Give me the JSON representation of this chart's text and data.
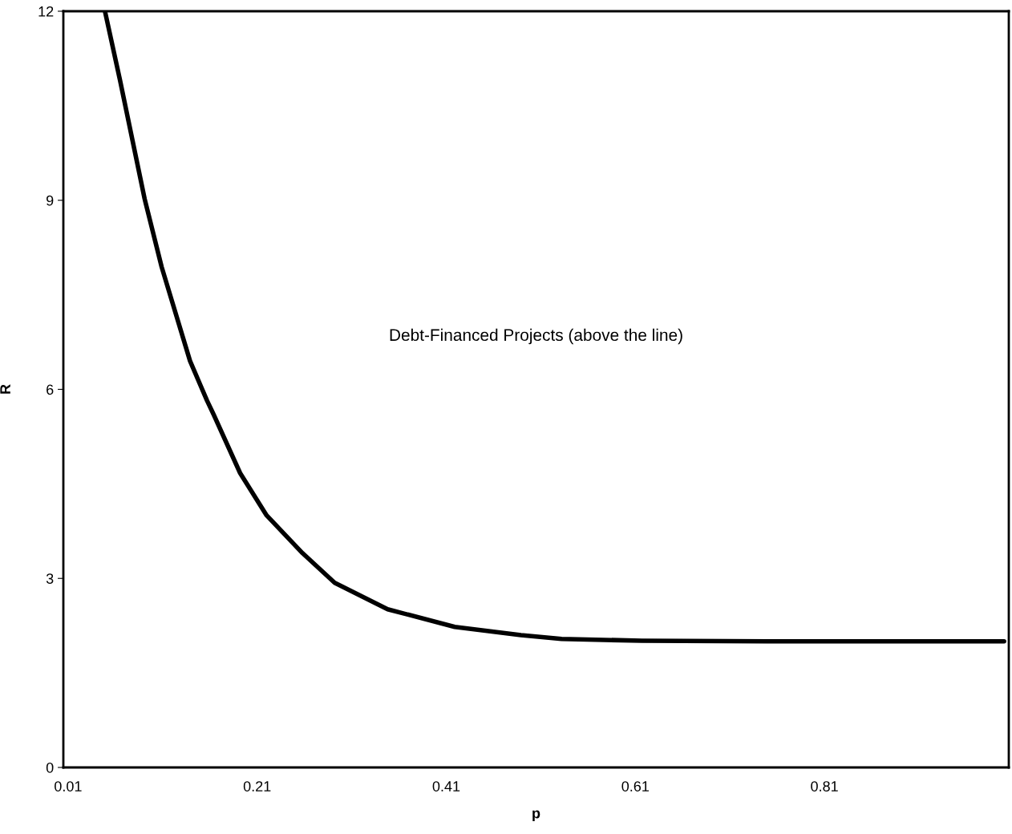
{
  "chart_data": {
    "type": "line",
    "xlabel": "p",
    "ylabel": "R",
    "annotations": [
      "Debt-Financed Projects (above the line)"
    ],
    "series": [
      {
        "color": "#000000",
        "x": [
          0.049,
          0.065,
          0.091,
          0.109,
          0.139,
          0.157,
          0.164,
          0.192,
          0.22,
          0.258,
          0.292,
          0.348,
          0.419,
          0.489,
          0.532,
          0.617,
          0.75,
          0.9,
          1.0
        ],
        "values": [
          12,
          10.9,
          9.02,
          7.94,
          6.45,
          5.82,
          5.6,
          4.67,
          4.0,
          3.4,
          2.93,
          2.51,
          2.23,
          2.1,
          2.04,
          2.01,
          2.0,
          2.0,
          2.0
        ]
      }
    ],
    "xlim": [
      0.005,
      1.005
    ],
    "xticks": [
      0.01,
      0.21,
      0.41,
      0.61,
      0.81
    ],
    "ylim": [
      0,
      12
    ],
    "yticks": [
      0,
      3,
      6,
      9,
      12
    ],
    "grid": false,
    "legend": false,
    "marker": "none",
    "line_style": "solid"
  }
}
